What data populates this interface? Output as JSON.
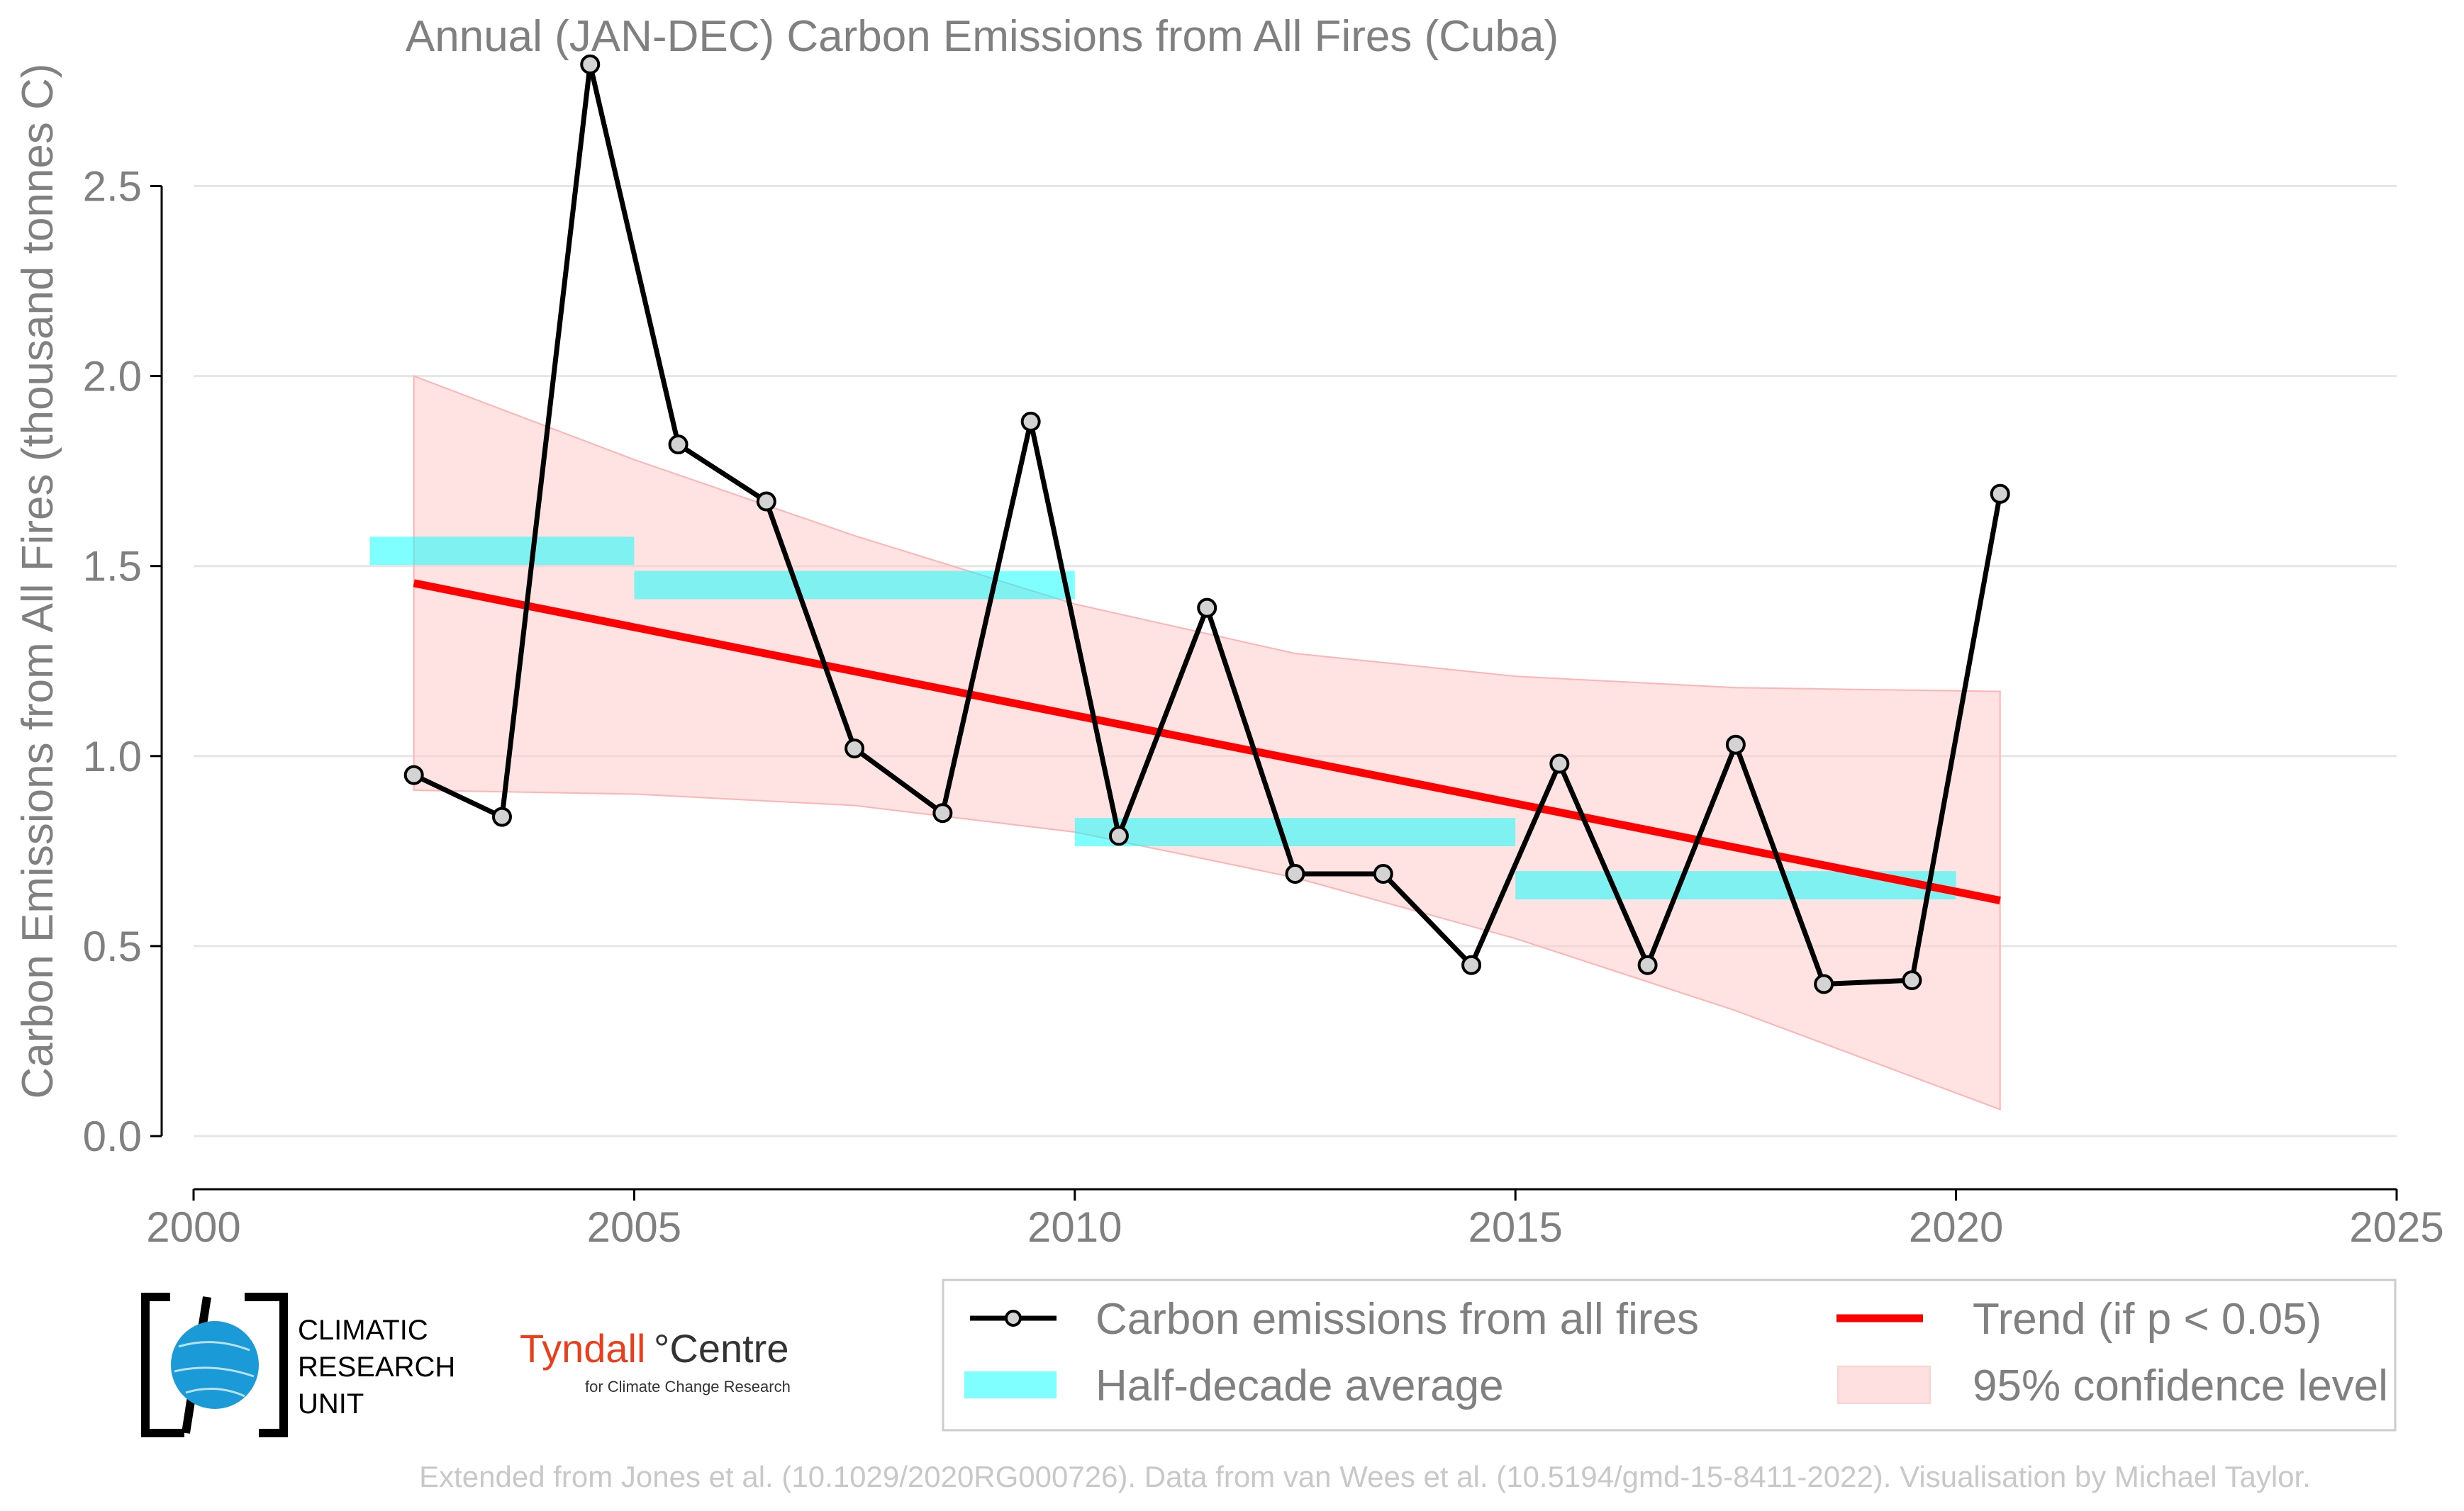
{
  "chart_data": {
    "type": "line",
    "title": "Annual (JAN-DEC) Carbon Emissions from All Fires (Cuba)",
    "xlabel": "",
    "ylabel": "Carbon Emissions from All Fires (thousand tonnes C)",
    "xlim": [
      2000,
      2025
    ],
    "ylim": [
      0,
      2.9
    ],
    "xticks": [
      2000,
      2005,
      2010,
      2015,
      2020,
      2025
    ],
    "yticks": [
      0.0,
      0.5,
      1.0,
      1.5,
      2.0,
      2.5
    ],
    "xtick_labels": [
      "2000",
      "2005",
      "2010",
      "2015",
      "2020",
      "2025"
    ],
    "ytick_labels": [
      "0.0",
      "0.5",
      "1.0",
      "1.5",
      "2.0",
      "2.5"
    ],
    "grid": true,
    "series": [
      {
        "name": "Carbon emissions from all fires",
        "color": "#000000",
        "x": [
          2002.5,
          2003.5,
          2004.5,
          2005.5,
          2006.5,
          2007.5,
          2008.5,
          2009.5,
          2010.5,
          2011.5,
          2012.5,
          2013.5,
          2014.5,
          2015.5,
          2016.5,
          2017.5,
          2018.5,
          2019.5,
          2020.5
        ],
        "values": [
          0.95,
          0.84,
          2.82,
          1.82,
          1.67,
          1.02,
          0.85,
          1.88,
          0.79,
          1.39,
          0.69,
          0.69,
          0.45,
          0.98,
          0.45,
          1.03,
          0.4,
          0.41,
          1.69
        ]
      }
    ],
    "half_decade_average": {
      "name": "Half-decade average",
      "color": "#00ffff",
      "segments": [
        {
          "x0": 2002.0,
          "x1": 2005.0,
          "value": 1.54
        },
        {
          "x0": 2005.0,
          "x1": 2010.0,
          "value": 1.45
        },
        {
          "x0": 2010.0,
          "x1": 2015.0,
          "value": 0.8
        },
        {
          "x0": 2015.0,
          "x1": 2020.0,
          "value": 0.66
        }
      ]
    },
    "trend": {
      "name": "Trend (if p < 0.05)",
      "color": "#ff0000",
      "x": [
        2002.5,
        2020.5
      ],
      "values": [
        1.455,
        0.62
      ]
    },
    "confidence_band": {
      "name": "95% confidence level",
      "color": "#ffcccc",
      "x": [
        2002.5,
        2005,
        2007.5,
        2010,
        2012.5,
        2015,
        2017.5,
        2020.5
      ],
      "upper": [
        2.0,
        1.78,
        1.58,
        1.4,
        1.27,
        1.21,
        1.18,
        1.17
      ],
      "lower": [
        0.91,
        0.9,
        0.87,
        0.8,
        0.68,
        0.52,
        0.33,
        0.07
      ]
    }
  },
  "legend": {
    "items": [
      {
        "label": "Carbon emissions from all fires"
      },
      {
        "label": "Trend (if p < 0.05)"
      },
      {
        "label": "Half-decade average"
      },
      {
        "label": "95% confidence level"
      }
    ]
  },
  "logos": {
    "cru_line1": "CLIMATIC",
    "cru_line2": "RESEARCH",
    "cru_line3": "UNIT",
    "tyndall_name": "Tyndall",
    "tyndall_centre": "°Centre",
    "tyndall_sub": "for Climate Change Research"
  },
  "footer": "Extended from Jones et al. (10.1029/2020RG000726). Data from van Wees et al. (10.5194/gmd-15-8411-2022). Visualisation by Michael Taylor."
}
